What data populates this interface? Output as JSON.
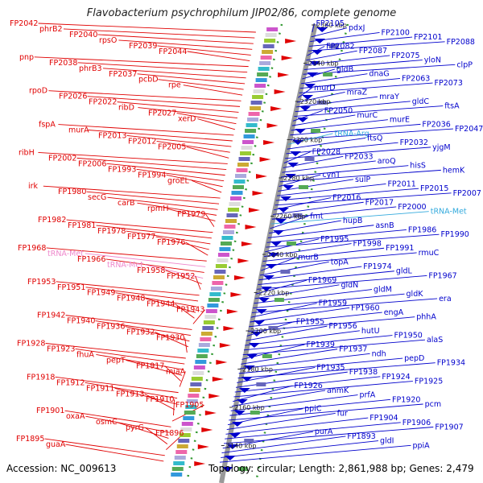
{
  "title": "Flavobacterium psychrophilum JIP02/86, complete genome",
  "accession": "Accession: NC_009613",
  "topology": "Topology: circular; Length: 2,861,988 bp; Genes: 2,479",
  "colors": {
    "left_strand": "#e00000",
    "right_strand": "#0000cc",
    "trna": "#ee88cc",
    "trna_right": "#33aadd",
    "backbone": "#999999",
    "dotted": "#339933"
  },
  "kbp_marks": [
    "2360 kbp",
    "2340 kbp",
    "2320 kbp",
    "2300 kbp",
    "2280 kbp",
    "2260 kbp",
    "2240 kbp",
    "2220 kbp",
    "2200 kbp",
    "2180 kbp",
    "2160 kbp",
    "2140 kbp"
  ],
  "left_labels": [
    "FP2042",
    "phrB2",
    "FP2040",
    "rpsO",
    "FP2039",
    "FP2044",
    "pnp",
    "FP2038",
    "phrB3",
    "FP2037",
    "pcbD",
    "rpe",
    "rpoD",
    "FP2026",
    "FP2022",
    "ribD",
    "FP2027",
    "xerD",
    "fspA",
    "murA",
    "FP2013",
    "FP2012",
    "FP2005",
    "ribH",
    "FP2002",
    "FP2006",
    "FP1993",
    "FP1994",
    "groEL",
    "irk",
    "FP1980",
    "secG",
    "carB",
    "rpmH",
    "FP1979",
    "FP1982",
    "FP1981",
    "FP1978",
    "FP1977",
    "FP1976",
    "FP1968",
    "tRNA-Met",
    "FP1966",
    "tRNA-Met",
    "FP1958",
    "FP1952",
    "FP1953",
    "FP1951",
    "FP1949",
    "FP1948",
    "FP1944",
    "FP1943",
    "FP1942",
    "FP1940",
    "FP1936",
    "FP1932",
    "FP1930",
    "FP1928",
    "FP1923",
    "fhuA",
    "pepT",
    "FP1917",
    "miaA",
    "FP1918",
    "FP1912",
    "FP1911",
    "FP1913",
    "FP1910",
    "FP1905",
    "FP1901",
    "oxaA",
    "osmC",
    "pyrG",
    "FP1896",
    "FP1895",
    "guaA"
  ],
  "right_labels": [
    "FP2105",
    "pdxJ",
    "FP2100",
    "FP2101",
    "FP2088",
    "FP2082",
    "FP2087",
    "FP2075",
    "yloN",
    "clpP",
    "gldB",
    "dnaG",
    "FP2063",
    "FP2073",
    "murD",
    "mraZ",
    "mraY",
    "gldC",
    "ftsA",
    "FP2050",
    "murC",
    "murE",
    "FP2036",
    "FP2047",
    "tRNA-Arg",
    "ftsQ",
    "FP2032",
    "yjgM",
    "FP2028",
    "FP2033",
    "aroQ",
    "hisS",
    "hemK",
    "cynT",
    "sulP",
    "FP2011",
    "FP2015",
    "FP2007",
    "FP2016",
    "FP2017",
    "FP2000",
    "tRNA-Met",
    "fmt",
    "hupB",
    "asnB",
    "FP1986",
    "FP1990",
    "FP1995",
    "FP1998",
    "FP1991",
    "rmuC",
    "murB",
    "topA",
    "FP1974",
    "gldL",
    "FP1967",
    "FP1969",
    "gldN",
    "gldM",
    "gldK",
    "era",
    "FP1959",
    "FP1960",
    "engA",
    "phhA",
    "FP1955",
    "FP1956",
    "hutU",
    "FP1950",
    "alaS",
    "FP1939",
    "FP1937",
    "ndh",
    "pepD",
    "FP1934",
    "FP1935",
    "FP1938",
    "FP1924",
    "FP1925",
    "FP1926",
    "anmK",
    "prfA",
    "FP1920",
    "pcm",
    "ppiC",
    "fur",
    "FP1904",
    "FP1906",
    "FP1907",
    "purA",
    "FP1893",
    "gldI",
    "ppiA"
  ]
}
